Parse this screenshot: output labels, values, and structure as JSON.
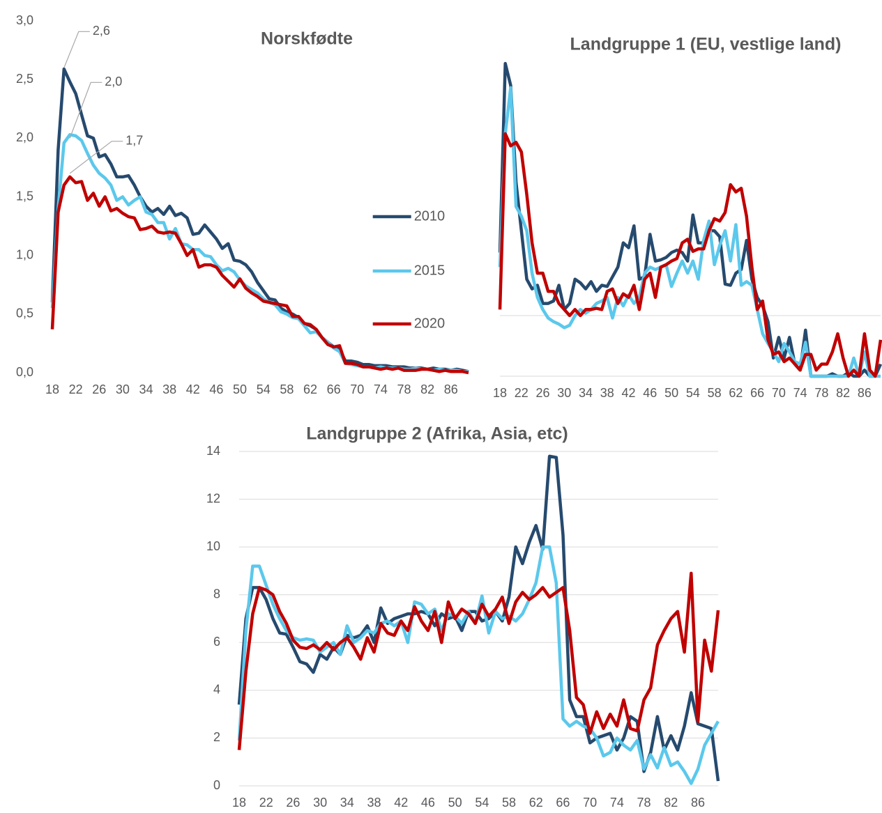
{
  "chart_data": [
    {
      "type": "line",
      "title": "Norskfødte",
      "grid": false,
      "legend": "right",
      "x": [
        18,
        19,
        20,
        21,
        22,
        23,
        24,
        25,
        26,
        27,
        28,
        29,
        30,
        31,
        32,
        33,
        34,
        35,
        36,
        37,
        38,
        39,
        40,
        41,
        42,
        43,
        44,
        45,
        46,
        47,
        48,
        49,
        50,
        51,
        52,
        53,
        54,
        55,
        56,
        57,
        58,
        59,
        60,
        61,
        62,
        63,
        64,
        65,
        66,
        67,
        68,
        69,
        70,
        71,
        72,
        73,
        74,
        75,
        76,
        77,
        78,
        79,
        80,
        81,
        82,
        83,
        84,
        85,
        86,
        87,
        88,
        89
      ],
      "xlim": [
        18,
        89
      ],
      "xticks": [
        18,
        22,
        26,
        30,
        34,
        38,
        42,
        46,
        50,
        54,
        58,
        62,
        66,
        70,
        74,
        78,
        82,
        86
      ],
      "ylim": [
        0,
        3
      ],
      "yticks": [
        {
          "value": 0,
          "label": "0,0"
        },
        {
          "value": 0.5,
          "label": "0,5"
        },
        {
          "value": 1,
          "label": "1,0"
        },
        {
          "value": 1.5,
          "label": "1,5"
        },
        {
          "value": 2,
          "label": "2,0"
        },
        {
          "value": 2.5,
          "label": "2,5"
        },
        {
          "value": 3,
          "label": "3,0"
        }
      ],
      "series": [
        {
          "name": "2010",
          "color": "#264a6e",
          "values": [
            0.6,
            1.9,
            2.59,
            2.48,
            2.38,
            2.2,
            2.02,
            2.0,
            1.84,
            1.86,
            1.78,
            1.67,
            1.67,
            1.68,
            1.6,
            1.5,
            1.42,
            1.37,
            1.4,
            1.35,
            1.42,
            1.34,
            1.36,
            1.32,
            1.18,
            1.19,
            1.26,
            1.2,
            1.14,
            1.06,
            1.1,
            0.96,
            0.95,
            0.92,
            0.86,
            0.77,
            0.7,
            0.63,
            0.62,
            0.55,
            0.52,
            0.5,
            0.47,
            0.42,
            0.4,
            0.37,
            0.3,
            0.26,
            0.22,
            0.2,
            0.1,
            0.1,
            0.09,
            0.07,
            0.07,
            0.06,
            0.06,
            0.06,
            0.05,
            0.05,
            0.05,
            0.04,
            0.04,
            0.04,
            0.03,
            0.04,
            0.03,
            0.03,
            0.02,
            0.03,
            0.02,
            0.01
          ]
        },
        {
          "name": "2015",
          "color": "#5bc8ec",
          "values": [
            0.55,
            1.4,
            1.96,
            2.03,
            2.02,
            1.98,
            1.87,
            1.77,
            1.7,
            1.66,
            1.6,
            1.47,
            1.5,
            1.43,
            1.47,
            1.5,
            1.37,
            1.35,
            1.28,
            1.28,
            1.14,
            1.23,
            1.1,
            1.09,
            1.05,
            1.05,
            1.0,
            0.99,
            0.92,
            0.87,
            0.89,
            0.86,
            0.79,
            0.74,
            0.71,
            0.68,
            0.63,
            0.6,
            0.58,
            0.52,
            0.5,
            0.47,
            0.46,
            0.4,
            0.34,
            0.35,
            0.3,
            0.26,
            0.21,
            0.18,
            0.08,
            0.07,
            0.06,
            0.05,
            0.05,
            0.04,
            0.05,
            0.04,
            0.04,
            0.04,
            0.03,
            0.03,
            0.04,
            0.03,
            0.03,
            0.02,
            0.03,
            0.02,
            0.02,
            0.02,
            0.01,
            0.01
          ]
        },
        {
          "name": "2020",
          "color": "#c00000",
          "values": [
            0.37,
            1.37,
            1.6,
            1.67,
            1.62,
            1.63,
            1.47,
            1.53,
            1.42,
            1.5,
            1.38,
            1.4,
            1.36,
            1.33,
            1.32,
            1.22,
            1.23,
            1.25,
            1.2,
            1.19,
            1.2,
            1.19,
            1.1,
            1.0,
            1.05,
            0.9,
            0.92,
            0.92,
            0.9,
            0.83,
            0.78,
            0.73,
            0.8,
            0.72,
            0.68,
            0.65,
            0.61,
            0.6,
            0.59,
            0.58,
            0.57,
            0.48,
            0.48,
            0.42,
            0.41,
            0.37,
            0.3,
            0.24,
            0.22,
            0.23,
            0.08,
            0.08,
            0.07,
            0.05,
            0.05,
            0.04,
            0.03,
            0.04,
            0.03,
            0.04,
            0.02,
            0.02,
            0.02,
            0.03,
            0.03,
            0.02,
            0.01,
            0.02,
            0.01,
            0.01,
            0.01,
            0.0
          ]
        }
      ],
      "annotations": [
        {
          "x": 20,
          "value": 2.6,
          "label": "2,6"
        },
        {
          "x": 21,
          "value": 2.0,
          "label": "2,0"
        },
        {
          "x": 21,
          "value": 1.7,
          "label": "1,7"
        }
      ]
    },
    {
      "type": "line",
      "title": "Landgruppe 1 (EU, vestlige land)",
      "grid": true,
      "ytick_labels": false,
      "x": [
        18,
        19,
        20,
        21,
        22,
        23,
        24,
        25,
        26,
        27,
        28,
        29,
        30,
        31,
        32,
        33,
        34,
        35,
        36,
        37,
        38,
        39,
        40,
        41,
        42,
        43,
        44,
        45,
        46,
        47,
        48,
        49,
        50,
        51,
        52,
        53,
        54,
        55,
        56,
        57,
        58,
        59,
        60,
        61,
        62,
        63,
        64,
        65,
        66,
        67,
        68,
        69,
        70,
        71,
        72,
        73,
        74,
        75,
        76,
        77,
        78,
        79,
        80,
        81,
        82,
        83,
        84,
        85,
        86,
        87,
        88,
        89
      ],
      "xlim": [
        18,
        89
      ],
      "xticks": [
        18,
        22,
        26,
        30,
        34,
        38,
        42,
        46,
        50,
        54,
        58,
        62,
        66,
        70,
        74,
        78,
        82,
        86
      ],
      "ylim": [
        0,
        3
      ],
      "yticks": [
        0,
        0.5
      ],
      "series": [
        {
          "color": "#264a6e",
          "values": [
            1.02,
            2.58,
            2.4,
            1.6,
            1.2,
            0.8,
            0.72,
            0.75,
            0.6,
            0.6,
            0.62,
            0.75,
            0.55,
            0.6,
            0.8,
            0.77,
            0.72,
            0.78,
            0.7,
            0.75,
            0.74,
            0.82,
            0.9,
            1.1,
            1.06,
            1.24,
            0.8,
            0.82,
            1.17,
            0.95,
            0.96,
            0.98,
            1.02,
            1.04,
            1.02,
            0.95,
            1.33,
            1.1,
            1.1,
            1.2,
            1.2,
            1.15,
            0.76,
            0.75,
            0.85,
            0.88,
            1.12,
            0.8,
            0.65,
            0.58,
            0.45,
            0.15,
            0.32,
            0.15,
            0.32,
            0.1,
            0.05,
            0.38,
            0.0,
            0.0,
            0.0,
            0.0,
            0.02,
            0.0,
            0.0,
            0.03,
            0.0,
            0.0,
            0.05,
            0.0,
            0.0,
            0.1
          ]
        },
        {
          "color": "#5bc8ec",
          "values": [
            0.9,
            2.0,
            2.38,
            1.4,
            1.32,
            1.2,
            0.85,
            0.65,
            0.55,
            0.48,
            0.45,
            0.43,
            0.4,
            0.42,
            0.5,
            0.55,
            0.52,
            0.55,
            0.6,
            0.62,
            0.65,
            0.48,
            0.65,
            0.58,
            0.67,
            0.6,
            0.65,
            0.85,
            0.9,
            0.88,
            0.9,
            0.92,
            0.74,
            0.85,
            0.95,
            0.85,
            0.95,
            0.8,
            1.12,
            1.28,
            0.92,
            1.08,
            1.2,
            0.95,
            1.25,
            0.75,
            0.78,
            0.75,
            0.55,
            0.35,
            0.27,
            0.2,
            0.12,
            0.27,
            0.2,
            0.12,
            0.1,
            0.28,
            0.0,
            0.0,
            0.0,
            0.0,
            0.0,
            0.0,
            0.0,
            0.0,
            0.15,
            0.0,
            0.2,
            0.0,
            0.0,
            0.0
          ]
        },
        {
          "color": "#c00000",
          "values": [
            0.55,
            2.0,
            1.9,
            1.93,
            1.85,
            1.5,
            1.1,
            0.85,
            0.85,
            0.7,
            0.7,
            0.6,
            0.55,
            0.5,
            0.55,
            0.5,
            0.55,
            0.55,
            0.56,
            0.55,
            0.7,
            0.72,
            0.6,
            0.68,
            0.65,
            0.75,
            0.55,
            0.8,
            0.85,
            0.65,
            0.9,
            0.92,
            0.95,
            0.97,
            1.1,
            1.13,
            1.03,
            1.05,
            1.05,
            1.2,
            1.3,
            1.28,
            1.35,
            1.58,
            1.52,
            1.55,
            1.32,
            0.9,
            0.55,
            0.62,
            0.3,
            0.18,
            0.2,
            0.12,
            0.15,
            0.1,
            0.05,
            0.18,
            0.18,
            0.05,
            0.1,
            0.1,
            0.2,
            0.35,
            0.15,
            0.0,
            0.05,
            0.0,
            0.35,
            0.05,
            0.0,
            0.3
          ]
        }
      ]
    },
    {
      "type": "line",
      "title": "Landgruppe 2 (Afrika, Asia, etc)",
      "grid": true,
      "x": [
        18,
        19,
        20,
        21,
        22,
        23,
        24,
        25,
        26,
        27,
        28,
        29,
        30,
        31,
        32,
        33,
        34,
        35,
        36,
        37,
        38,
        39,
        40,
        41,
        42,
        43,
        44,
        45,
        46,
        47,
        48,
        49,
        50,
        51,
        52,
        53,
        54,
        55,
        56,
        57,
        58,
        59,
        60,
        61,
        62,
        63,
        64,
        65,
        66,
        67,
        68,
        69,
        70,
        71,
        72,
        73,
        74,
        75,
        76,
        77,
        78,
        79,
        80,
        81,
        82,
        83,
        84,
        85,
        86,
        87,
        88,
        89
      ],
      "xlim": [
        18,
        89
      ],
      "xticks": [
        18,
        22,
        26,
        30,
        34,
        38,
        42,
        46,
        50,
        54,
        58,
        62,
        66,
        70,
        74,
        78,
        82,
        86
      ],
      "ylim": [
        0,
        14
      ],
      "yticks": [
        0,
        2,
        4,
        6,
        8,
        10,
        12,
        14
      ],
      "series": [
        {
          "color": "#264a6e",
          "values": [
            3.4,
            7.0,
            8.3,
            8.3,
            7.8,
            7.0,
            6.4,
            6.35,
            5.8,
            5.2,
            5.1,
            4.75,
            5.5,
            5.3,
            5.8,
            5.5,
            6.3,
            6.2,
            6.3,
            6.7,
            6.0,
            7.45,
            6.8,
            7.0,
            7.1,
            7.2,
            7.2,
            7.3,
            7.2,
            6.7,
            7.2,
            7.0,
            7.1,
            6.5,
            7.3,
            7.3,
            6.9,
            7.0,
            7.3,
            6.9,
            7.9,
            10.0,
            9.3,
            10.2,
            10.9,
            9.9,
            13.8,
            13.75,
            10.5,
            3.6,
            2.9,
            2.9,
            1.8,
            2.0,
            2.1,
            2.2,
            1.5,
            2.0,
            2.9,
            2.7,
            0.6,
            1.4,
            2.9,
            1.5,
            2.1,
            1.5,
            2.5,
            3.9,
            2.6,
            2.5,
            2.4,
            0.2
          ]
        },
        {
          "color": "#5bc8ec",
          "values": [
            1.9,
            6.5,
            9.2,
            9.2,
            8.4,
            7.6,
            7.0,
            6.5,
            6.2,
            6.1,
            6.15,
            6.1,
            5.6,
            5.8,
            6.0,
            5.5,
            6.7,
            6.0,
            6.2,
            6.5,
            6.4,
            6.8,
            6.9,
            6.7,
            6.9,
            6.0,
            7.7,
            7.6,
            7.2,
            7.4,
            6.5,
            7.2,
            7.1,
            6.8,
            7.3,
            6.8,
            7.95,
            6.4,
            7.3,
            7.0,
            7.1,
            6.9,
            7.2,
            7.8,
            8.5,
            10.0,
            10.0,
            8.5,
            2.8,
            2.5,
            2.7,
            2.5,
            2.4,
            2.0,
            1.25,
            1.4,
            2.0,
            1.7,
            1.5,
            1.9,
            0.7,
            1.3,
            0.75,
            1.6,
            0.85,
            1.0,
            0.6,
            0.1,
            0.7,
            1.7,
            2.2,
            2.7
          ]
        },
        {
          "color": "#c00000",
          "values": [
            1.5,
            4.8,
            7.2,
            8.3,
            8.2,
            8.0,
            7.3,
            6.8,
            6.1,
            5.8,
            5.75,
            5.9,
            5.7,
            6.0,
            5.7,
            6.0,
            6.2,
            5.8,
            5.3,
            6.2,
            5.6,
            6.8,
            6.4,
            6.3,
            6.9,
            6.5,
            7.5,
            6.9,
            6.5,
            7.3,
            6.0,
            7.7,
            7.0,
            7.4,
            7.2,
            6.8,
            7.6,
            7.1,
            7.4,
            7.9,
            6.8,
            7.7,
            8.1,
            7.8,
            8.0,
            8.3,
            7.9,
            8.1,
            8.3,
            6.5,
            3.7,
            3.4,
            2.2,
            3.1,
            2.4,
            3.0,
            2.5,
            3.6,
            2.4,
            2.3,
            3.6,
            4.1,
            5.9,
            6.5,
            7.0,
            7.3,
            5.6,
            8.9,
            2.7,
            6.1,
            4.8,
            7.35
          ]
        }
      ]
    }
  ]
}
